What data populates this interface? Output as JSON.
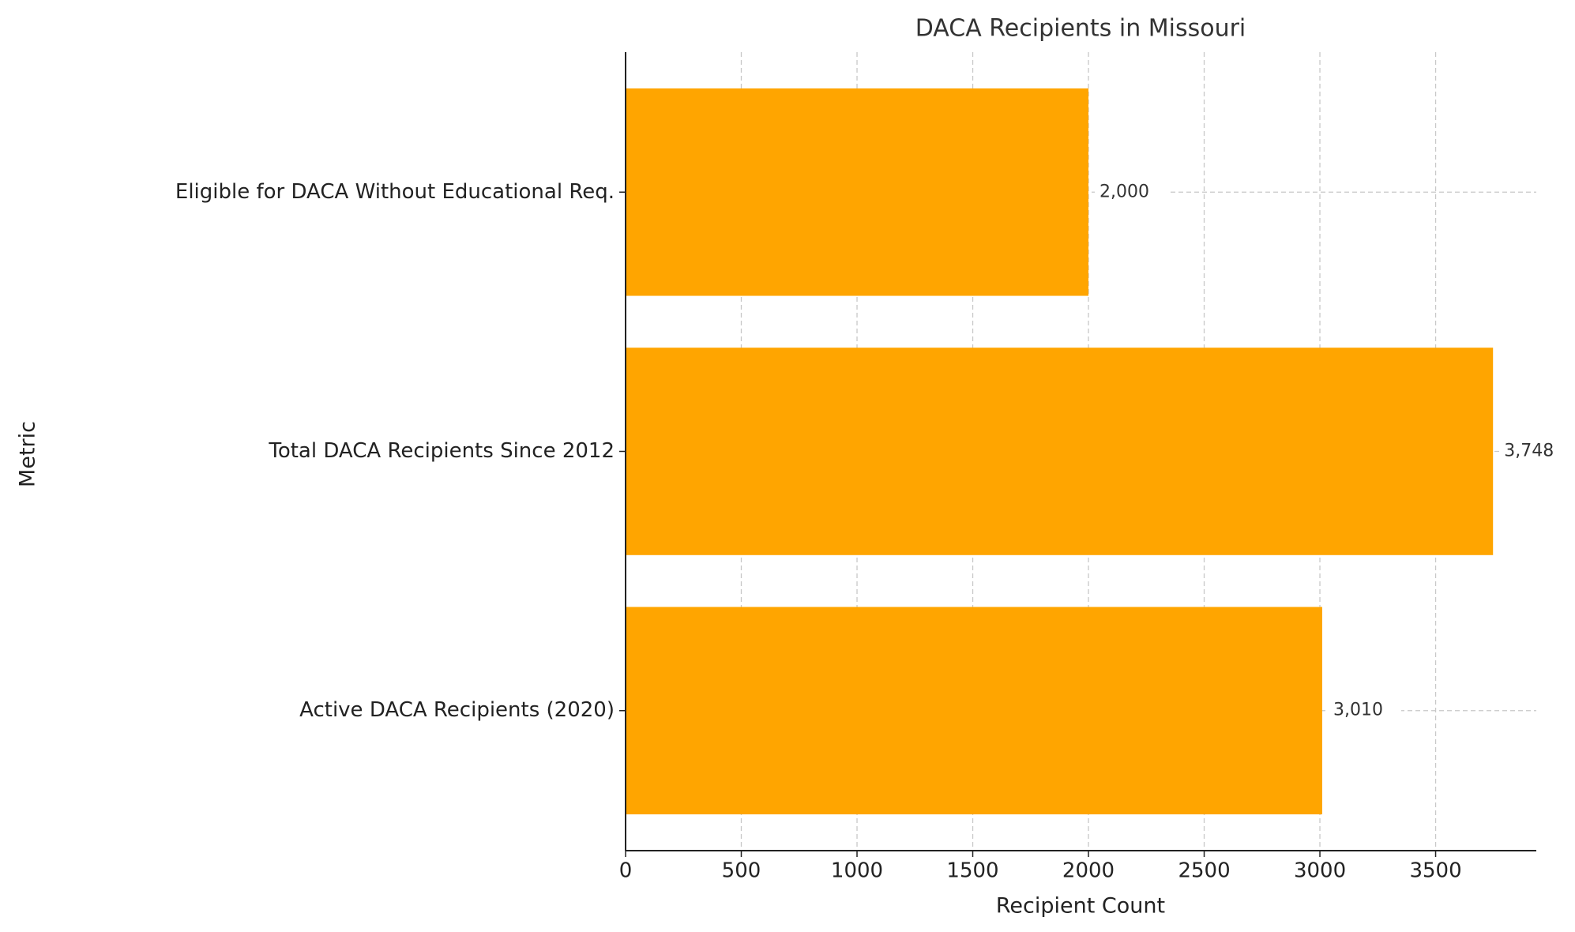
{
  "chart_data": {
    "type": "barh",
    "title": "DACA Recipients in Missouri",
    "x_label": "Recipient Count",
    "y_label": "Metric",
    "categories": [
      "Active DACA Recipients (2020)",
      "Total DACA Recipients Since 2012",
      "Eligible for DACA Without Educational Req."
    ],
    "values": [
      3010,
      3748,
      2000
    ],
    "value_labels": [
      "3,010",
      "3,748",
      "2,000"
    ],
    "color": "#ffa500",
    "xlim": [
      0,
      3935
    ],
    "xticks": [
      0,
      500,
      1000,
      1500,
      2000,
      2500,
      3000,
      3500
    ],
    "grid": true
  }
}
